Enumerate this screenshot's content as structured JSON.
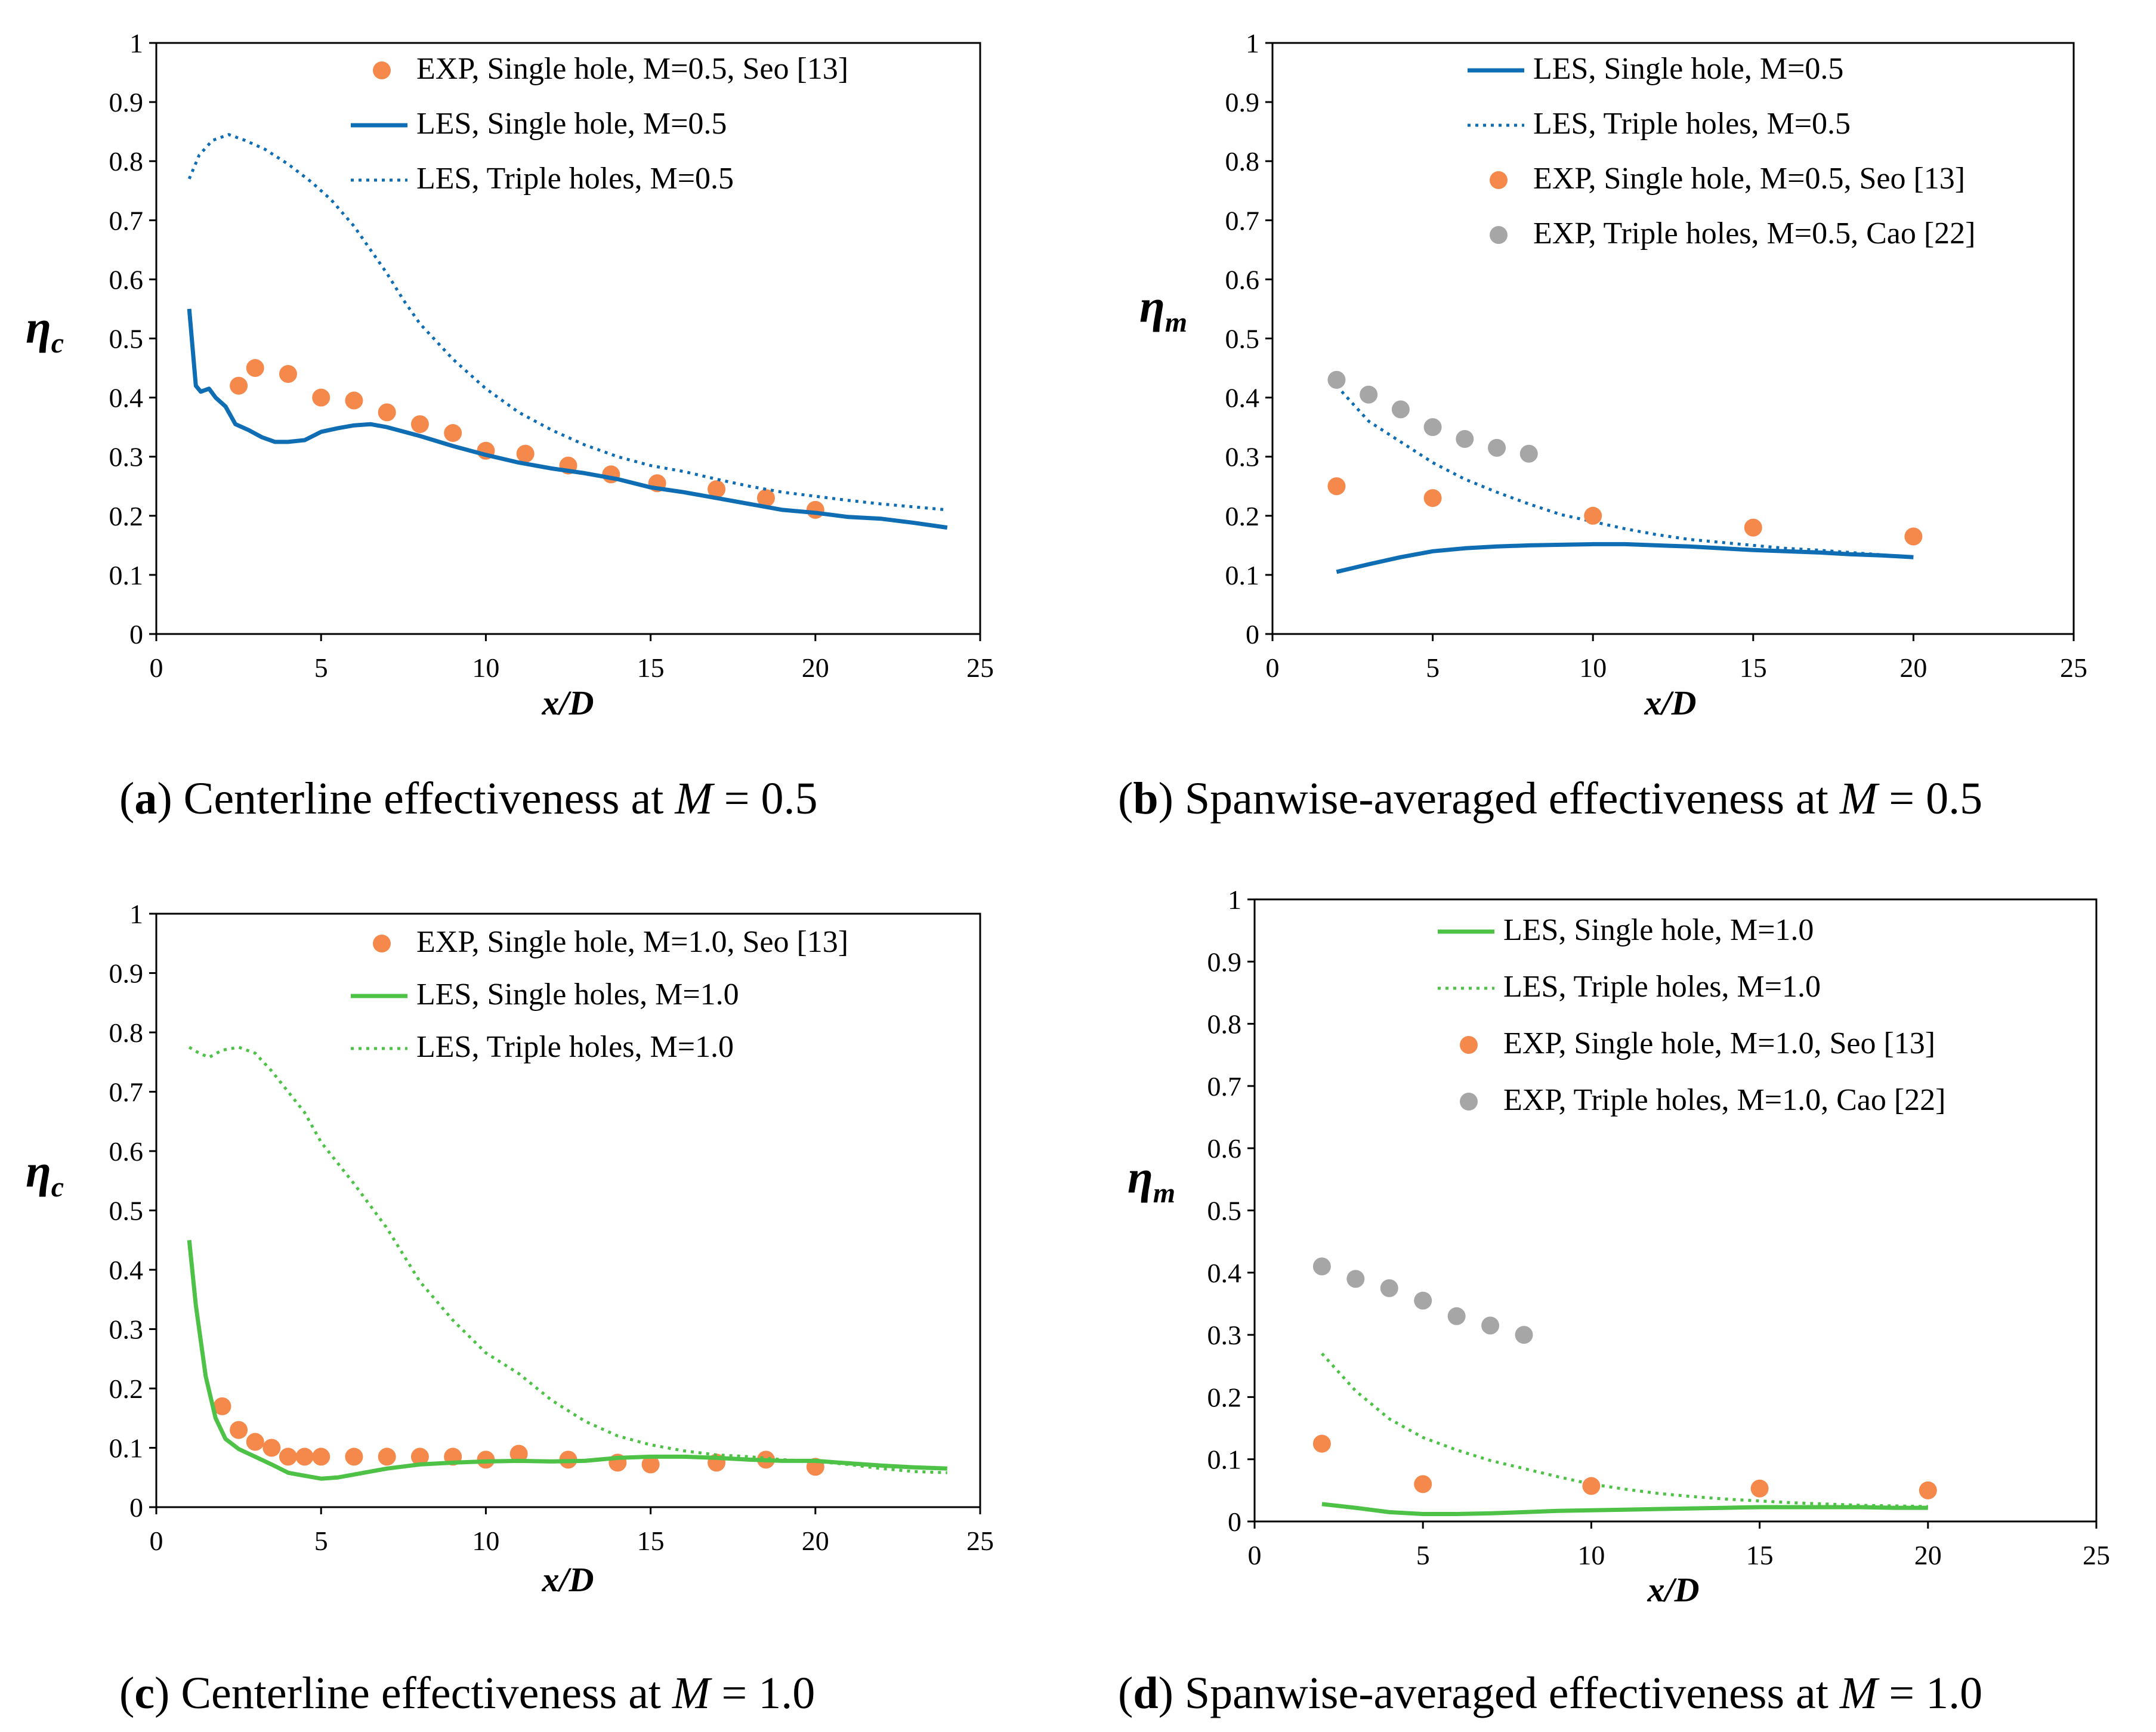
{
  "chart_data": [
    {
      "id": "a",
      "type": "line",
      "panel_label": "a",
      "caption": {
        "text": "Centerline effectiveness at",
        "var": "M",
        "value": "= 0.5"
      },
      "ylabel_main": "η",
      "ylabel_sub": "c",
      "xlabel": "x/D",
      "xlim": [
        0,
        25
      ],
      "ylim": [
        0,
        1
      ],
      "xticks": [
        "0",
        "5",
        "10",
        "15",
        "20",
        "25"
      ],
      "yticks": [
        "0",
        "0.1",
        "0.2",
        "0.3",
        "0.4",
        "0.5",
        "0.6",
        "0.7",
        "0.8",
        "0.9",
        "1"
      ],
      "legend": [
        {
          "label": "EXP, Single hole, M=0.5, Seo [13]",
          "series": 0
        },
        {
          "label": "LES, Single hole, M=0.5",
          "series": 1
        },
        {
          "label": "LES, Triple holes, M=0.5",
          "series": 2
        }
      ],
      "series": [
        {
          "name": "EXP, Single hole, M=0.5, Seo [13]",
          "style": "marker",
          "color": "#F4894B",
          "x": [
            2.5,
            3,
            4,
            5,
            6,
            7,
            8,
            9,
            10,
            11.2,
            12.5,
            13.8,
            15.2,
            17,
            18.5,
            20
          ],
          "y": [
            0.42,
            0.45,
            0.44,
            0.4,
            0.395,
            0.375,
            0.355,
            0.34,
            0.31,
            0.305,
            0.285,
            0.27,
            0.255,
            0.245,
            0.23,
            0.21
          ]
        },
        {
          "name": "LES, Single hole, M=0.5",
          "style": "solid",
          "color": "#0F6DB3",
          "x": [
            1,
            1.2,
            1.35,
            1.6,
            1.8,
            2.1,
            2.4,
            2.8,
            3.2,
            3.6,
            4.0,
            4.5,
            5.0,
            5.5,
            6.0,
            6.5,
            7.0,
            8,
            9,
            10,
            11,
            12,
            13,
            14,
            15,
            16,
            17,
            18,
            19,
            20,
            21,
            22,
            23,
            24
          ],
          "y": [
            0.55,
            0.42,
            0.41,
            0.415,
            0.4,
            0.385,
            0.355,
            0.345,
            0.333,
            0.325,
            0.325,
            0.328,
            0.342,
            0.348,
            0.353,
            0.355,
            0.35,
            0.335,
            0.318,
            0.303,
            0.29,
            0.28,
            0.272,
            0.262,
            0.248,
            0.24,
            0.23,
            0.22,
            0.21,
            0.205,
            0.198,
            0.195,
            0.188,
            0.18
          ]
        },
        {
          "name": "LES, Triple holes, M=0.5",
          "style": "dotted",
          "color": "#0F6DB3",
          "x": [
            1,
            1.3,
            1.7,
            2.2,
            2.7,
            3.3,
            4,
            4.7,
            5.3,
            6,
            6.5,
            7,
            7.5,
            8,
            9,
            10,
            11,
            12,
            13,
            14,
            15,
            16,
            17,
            18,
            19,
            20,
            21,
            22,
            23,
            24
          ],
          "y": [
            0.77,
            0.81,
            0.835,
            0.845,
            0.835,
            0.82,
            0.795,
            0.765,
            0.735,
            0.69,
            0.65,
            0.61,
            0.565,
            0.525,
            0.465,
            0.415,
            0.375,
            0.345,
            0.32,
            0.3,
            0.285,
            0.275,
            0.262,
            0.25,
            0.24,
            0.233,
            0.226,
            0.22,
            0.215,
            0.21
          ]
        }
      ]
    },
    {
      "id": "b",
      "type": "line",
      "panel_label": "b",
      "caption": {
        "text": "Spanwise-averaged effectiveness at",
        "var": "M",
        "value": "= 0.5"
      },
      "ylabel_main": "η",
      "ylabel_sub": "m",
      "xlabel": "x/D",
      "xlim": [
        0,
        25
      ],
      "ylim": [
        0,
        1
      ],
      "xticks": [
        "0",
        "5",
        "10",
        "15",
        "20",
        "25"
      ],
      "yticks": [
        "0",
        "0.1",
        "0.2",
        "0.3",
        "0.4",
        "0.5",
        "0.6",
        "0.7",
        "0.8",
        "0.9",
        "1"
      ],
      "legend": [
        {
          "label": "LES, Single hole, M=0.5",
          "series": 0
        },
        {
          "label": "LES, Triple holes, M=0.5",
          "series": 1
        },
        {
          "label": "EXP, Single hole, M=0.5, Seo [13]",
          "series": 2
        },
        {
          "label": "EXP, Triple holes, M=0.5, Cao [22]",
          "series": 3
        }
      ],
      "series": [
        {
          "name": "LES, Single hole, M=0.5",
          "style": "solid",
          "color": "#0F6DB3",
          "x": [
            2,
            3,
            4,
            5,
            6,
            7,
            8,
            9,
            10,
            11,
            12,
            13,
            14,
            15,
            16,
            17,
            18,
            19,
            20
          ],
          "y": [
            0.105,
            0.118,
            0.13,
            0.14,
            0.145,
            0.148,
            0.15,
            0.151,
            0.152,
            0.152,
            0.15,
            0.148,
            0.145,
            0.142,
            0.14,
            0.138,
            0.135,
            0.133,
            0.13
          ]
        },
        {
          "name": "LES, Triple holes, M=0.5",
          "style": "dotted",
          "color": "#0F6DB3",
          "x": [
            2,
            3,
            4,
            5,
            6,
            7,
            8,
            9,
            10,
            11,
            12,
            13,
            14,
            15,
            16,
            17,
            18,
            19,
            20
          ],
          "y": [
            0.42,
            0.36,
            0.325,
            0.29,
            0.262,
            0.24,
            0.22,
            0.202,
            0.19,
            0.178,
            0.168,
            0.16,
            0.155,
            0.15,
            0.145,
            0.142,
            0.138,
            0.134,
            0.13
          ]
        },
        {
          "name": "EXP, Single hole, M=0.5, Seo [13]",
          "style": "marker",
          "color": "#F4894B",
          "x": [
            2,
            5,
            10,
            15,
            20
          ],
          "y": [
            0.25,
            0.23,
            0.2,
            0.18,
            0.165
          ]
        },
        {
          "name": "EXP, Triple holes, M=0.5, Cao [22]",
          "style": "marker",
          "color": "#A6A6A6",
          "x": [
            2,
            3,
            4,
            5,
            6,
            7,
            8
          ],
          "y": [
            0.43,
            0.405,
            0.38,
            0.35,
            0.33,
            0.315,
            0.305
          ]
        }
      ]
    },
    {
      "id": "c",
      "type": "line",
      "panel_label": "c",
      "caption": {
        "text": "Centerline effectiveness at",
        "var": "M",
        "value": "= 1.0"
      },
      "ylabel_main": "η",
      "ylabel_sub": "c",
      "xlabel": "x/D",
      "xlim": [
        0,
        25
      ],
      "ylim": [
        0,
        1
      ],
      "xticks": [
        "0",
        "5",
        "10",
        "15",
        "20",
        "25"
      ],
      "yticks": [
        "0",
        "0.1",
        "0.2",
        "0.3",
        "0.4",
        "0.5",
        "0.6",
        "0.7",
        "0.8",
        "0.9",
        "1"
      ],
      "legend": [
        {
          "label": "EXP, Single hole, M=1.0, Seo [13]",
          "series": 0
        },
        {
          "label": "LES, Single holes, M=1.0",
          "series": 1
        },
        {
          "label": "LES, Triple holes, M=1.0",
          "series": 2
        }
      ],
      "series": [
        {
          "name": "EXP, Single hole, M=1.0, Seo [13]",
          "style": "marker",
          "color": "#F4894B",
          "x": [
            2,
            2.5,
            3,
            3.5,
            4,
            4.5,
            5,
            6,
            7,
            8,
            9,
            10,
            11,
            12.5,
            14,
            15,
            17,
            18.5,
            20
          ],
          "y": [
            0.17,
            0.13,
            0.11,
            0.1,
            0.085,
            0.085,
            0.085,
            0.085,
            0.085,
            0.085,
            0.085,
            0.08,
            0.09,
            0.08,
            0.075,
            0.072,
            0.075,
            0.08,
            0.068
          ]
        },
        {
          "name": "LES, Single holes, M=1.0",
          "style": "solid",
          "color": "#4DC247",
          "x": [
            1,
            1.2,
            1.5,
            1.8,
            2.1,
            2.5,
            3,
            3.5,
            4,
            4.5,
            5,
            5.5,
            6,
            7,
            8,
            9,
            10,
            11,
            12,
            13,
            14,
            15,
            16,
            17,
            18,
            19,
            20,
            21,
            22,
            23,
            24
          ],
          "y": [
            0.45,
            0.34,
            0.22,
            0.15,
            0.115,
            0.098,
            0.085,
            0.072,
            0.058,
            0.053,
            0.048,
            0.05,
            0.055,
            0.065,
            0.072,
            0.075,
            0.077,
            0.078,
            0.077,
            0.078,
            0.083,
            0.085,
            0.085,
            0.083,
            0.08,
            0.078,
            0.078,
            0.074,
            0.07,
            0.067,
            0.065
          ]
        },
        {
          "name": "LES, Triple holes, M=1.0",
          "style": "dotted",
          "color": "#4DC247",
          "x": [
            1,
            1.3,
            1.6,
            2,
            2.5,
            3,
            3.5,
            4,
            4.5,
            5,
            6,
            7,
            8,
            9,
            10,
            11,
            12,
            13,
            14,
            15,
            16,
            17,
            18,
            19,
            20,
            21,
            22,
            23,
            24
          ],
          "y": [
            0.775,
            0.765,
            0.758,
            0.77,
            0.775,
            0.765,
            0.735,
            0.7,
            0.665,
            0.615,
            0.545,
            0.47,
            0.38,
            0.315,
            0.26,
            0.225,
            0.18,
            0.145,
            0.12,
            0.105,
            0.095,
            0.088,
            0.085,
            0.08,
            0.077,
            0.072,
            0.065,
            0.06,
            0.058
          ]
        }
      ]
    },
    {
      "id": "d",
      "type": "line",
      "panel_label": "d",
      "caption": {
        "text": "Spanwise-averaged effectiveness at",
        "var": "M",
        "value": "= 1.0"
      },
      "ylabel_main": "η",
      "ylabel_sub": "m",
      "xlabel": "x/D",
      "xlim": [
        0,
        25
      ],
      "ylim": [
        0,
        1
      ],
      "xticks": [
        "0",
        "5",
        "10",
        "15",
        "20",
        "25"
      ],
      "yticks": [
        "0",
        "0.1",
        "0.2",
        "0.3",
        "0.4",
        "0.5",
        "0.6",
        "0.7",
        "0.8",
        "0.9",
        "1"
      ],
      "legend": [
        {
          "label": "LES, Single hole, M=1.0",
          "series": 0
        },
        {
          "label": "LES, Triple holes, M=1.0",
          "series": 1
        },
        {
          "label": "EXP, Single hole, M=1.0, Seo [13]",
          "series": 2
        },
        {
          "label": "EXP, Triple holes, M=1.0, Cao [22]",
          "series": 3
        }
      ],
      "series": [
        {
          "name": "LES, Single hole, M=1.0",
          "style": "solid",
          "color": "#4DC247",
          "x": [
            2,
            3,
            4,
            5,
            6,
            7,
            8,
            9,
            10,
            11,
            12,
            13,
            14,
            15,
            16,
            17,
            18,
            19,
            20
          ],
          "y": [
            0.028,
            0.022,
            0.015,
            0.012,
            0.012,
            0.013,
            0.015,
            0.017,
            0.018,
            0.019,
            0.02,
            0.021,
            0.022,
            0.023,
            0.023,
            0.023,
            0.023,
            0.022,
            0.022
          ]
        },
        {
          "name": "LES, Triple holes, M=1.0",
          "style": "dotted",
          "color": "#4DC247",
          "x": [
            2,
            3,
            4,
            5,
            6,
            7,
            8,
            9,
            10,
            11,
            12,
            13,
            14,
            15,
            16,
            17,
            18,
            19,
            20
          ],
          "y": [
            0.27,
            0.21,
            0.165,
            0.135,
            0.115,
            0.098,
            0.085,
            0.072,
            0.06,
            0.052,
            0.045,
            0.04,
            0.036,
            0.033,
            0.03,
            0.028,
            0.026,
            0.025,
            0.024
          ]
        },
        {
          "name": "EXP, Single hole, M=1.0, Seo [13]",
          "style": "marker",
          "color": "#F4894B",
          "x": [
            2,
            5,
            10,
            15,
            20
          ],
          "y": [
            0.125,
            0.06,
            0.057,
            0.053,
            0.05
          ]
        },
        {
          "name": "EXP, Triple holes, M=1.0, Cao [22]",
          "style": "marker",
          "color": "#A6A6A6",
          "x": [
            2,
            3,
            4,
            5,
            6,
            7,
            8
          ],
          "y": [
            0.41,
            0.39,
            0.375,
            0.355,
            0.33,
            0.315,
            0.3
          ]
        }
      ]
    }
  ]
}
